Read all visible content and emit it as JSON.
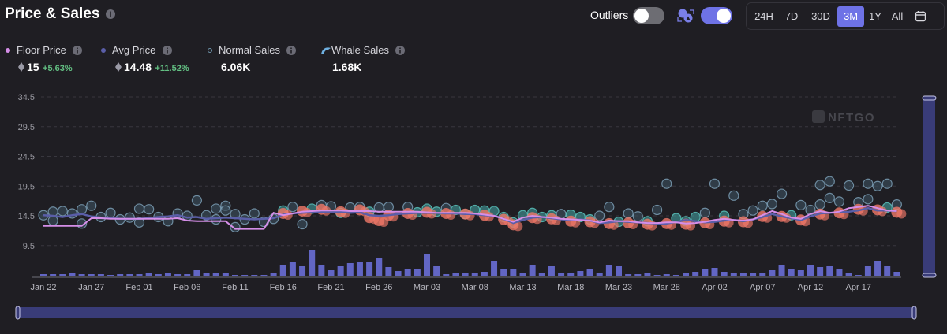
{
  "header": {
    "title": "Price & Sales"
  },
  "controls": {
    "outliers_label": "Outliers",
    "outliers_on": false,
    "whale_toggle_on": true,
    "ranges": [
      "24H",
      "7D",
      "30D",
      "3M",
      "1Y",
      "All"
    ],
    "active_range": "3M",
    "accent": "#6e72e6"
  },
  "legend": {
    "floor": {
      "label": "Floor Price",
      "value": "15",
      "change": "+5.63%",
      "color": "#d58ee8"
    },
    "avg": {
      "label": "Avg Price",
      "value": "14.48",
      "change": "+11.52%",
      "color": "#5a5ea8"
    },
    "normal": {
      "label": "Normal Sales",
      "value": "6.06K",
      "color": "#6f95ab"
    },
    "whale": {
      "label": "Whale Sales",
      "value": "1.68K",
      "color": "#f07868"
    }
  },
  "watermark": "NFTGO",
  "chart_data": {
    "type": "line+scatter+bar",
    "y_ticks": [
      "34.5",
      "29.5",
      "24.5",
      "19.5",
      "14.5",
      "9.5"
    ],
    "ylim": [
      4.5,
      34.5
    ],
    "x_ticks": [
      "Jan 22",
      "Jan 27",
      "Feb 01",
      "Feb 06",
      "Feb 11",
      "Feb 16",
      "Feb 21",
      "Feb 26",
      "Mar 03",
      "Mar 08",
      "Mar 13",
      "Mar 18",
      "Mar 23",
      "Mar 28",
      "Apr 02",
      "Apr 07",
      "Apr 12",
      "Apr 17"
    ],
    "x_range": [
      "Jan 22",
      "Apr 21"
    ],
    "grid": true,
    "floor_price": [
      12.8,
      12.8,
      12.8,
      12.8,
      12.8,
      14.1,
      14.1,
      14.0,
      14.0,
      14.0,
      14.0,
      14.0,
      14.0,
      14.0,
      14.1,
      13.7,
      13.6,
      13.6,
      13.6,
      13.6,
      12.3,
      12.3,
      12.3,
      12.3,
      15.0,
      14.6,
      14.9,
      15.2,
      15.3,
      15.4,
      15.4,
      15.4,
      15.3,
      15.3,
      15.3,
      15.2,
      15.2,
      15.2,
      15.2,
      15.2,
      15.1,
      15.0,
      15.0,
      15.0,
      15.0,
      14.9,
      14.7,
      14.5,
      14.0,
      13.5,
      14.2,
      14.5,
      14.3,
      14.2,
      14.0,
      13.9,
      13.8,
      13.7,
      13.4,
      13.7,
      13.6,
      13.6,
      13.4,
      13.3,
      13.3,
      13.4,
      13.4,
      13.2,
      13.3,
      13.5,
      13.8,
      14.0,
      13.8,
      13.7,
      13.9,
      14.6,
      15.3,
      14.8,
      14.2,
      14.0,
      14.8,
      15.3,
      15.0,
      15.2,
      15.8,
      16.0,
      16.2,
      15.8,
      15.4,
      15.3
    ],
    "avg_price": [
      14.6,
      14.5,
      14.3,
      14.6,
      14.8,
      14.4,
      14.2,
      14.1,
      14.0,
      14.0,
      14.0,
      14.1,
      14.3,
      14.4,
      14.6,
      14.2,
      14.3,
      14.0,
      14.1,
      14.2,
      14.1,
      14.0,
      13.9,
      14.0,
      14.1,
      14.7,
      14.9,
      15.0,
      15.1,
      15.2,
      15.1,
      15.2,
      15.0,
      15.1,
      14.6,
      14.5,
      14.6,
      14.8,
      14.9,
      15.0,
      15.0,
      15.0,
      14.9,
      14.9,
      14.8,
      14.8,
      14.6,
      14.5,
      14.0,
      13.3,
      13.8,
      14.2,
      14.3,
      14.1,
      13.9,
      13.8,
      13.9,
      13.7,
      13.3,
      13.4,
      13.6,
      13.5,
      13.4,
      13.3,
      13.2,
      13.2,
      13.5,
      13.8,
      13.6,
      13.4,
      13.5,
      13.7,
      13.8,
      13.6,
      13.9,
      14.3,
      14.8,
      14.4,
      14.1,
      13.8,
      14.4,
      14.9,
      15.0,
      15.1,
      15.2,
      15.4,
      15.8,
      15.4,
      15.4,
      15.3
    ],
    "normal_sales": [
      [
        "Jan 22",
        14.6
      ],
      [
        "Jan 23",
        15.2
      ],
      [
        "Jan 23",
        13.7
      ],
      [
        "Jan 24",
        15.3
      ],
      [
        "Jan 25",
        14.9
      ],
      [
        "Jan 26",
        15.6
      ],
      [
        "Jan 26",
        13.2
      ],
      [
        "Jan 27",
        16.2
      ],
      [
        "Jan 28",
        14.3
      ],
      [
        "Jan 29",
        15.0
      ],
      [
        "Jan 30",
        13.9
      ],
      [
        "Jan 31",
        14.2
      ],
      [
        "Feb 01",
        15.7
      ],
      [
        "Feb 01",
        13.4
      ],
      [
        "Feb 02",
        15.6
      ],
      [
        "Feb 03",
        14.3
      ],
      [
        "Feb 04",
        13.6
      ],
      [
        "Feb 05",
        14.9
      ],
      [
        "Feb 06",
        14.5
      ],
      [
        "Feb 07",
        17.1
      ],
      [
        "Feb 08",
        14.6
      ],
      [
        "Feb 09",
        15.7
      ],
      [
        "Feb 09",
        13.9
      ],
      [
        "Feb 10",
        16.2
      ],
      [
        "Feb 10",
        15.4
      ],
      [
        "Feb 11",
        12.6
      ],
      [
        "Feb 11",
        14.8
      ],
      [
        "Feb 12",
        13.9
      ],
      [
        "Feb 13",
        14.9
      ],
      [
        "Feb 14",
        13.5
      ],
      [
        "Feb 15",
        14.0
      ],
      [
        "Feb 16",
        15.4
      ],
      [
        "Feb 17",
        16.0
      ],
      [
        "Feb 18",
        13.1
      ],
      [
        "Feb 19",
        15.7
      ],
      [
        "Feb 20",
        16.3
      ],
      [
        "Feb 21",
        16.1
      ],
      [
        "Feb 22",
        15.0
      ],
      [
        "Feb 23",
        15.9
      ],
      [
        "Feb 24",
        16.0
      ],
      [
        "Feb 25",
        15.2
      ],
      [
        "Feb 26",
        15.9
      ],
      [
        "Feb 27",
        16.0
      ],
      [
        "Mar 01",
        16.0
      ],
      [
        "Mar 02",
        15.1
      ],
      [
        "Mar 03",
        15.7
      ],
      [
        "Mar 04",
        15.2
      ],
      [
        "Mar 05",
        15.8
      ],
      [
        "Mar 06",
        15.5
      ],
      [
        "Mar 07",
        14.8
      ],
      [
        "Mar 08",
        15.5
      ],
      [
        "Mar 09",
        15.4
      ],
      [
        "Mar 10",
        15.3
      ],
      [
        "Mar 11",
        14.3
      ],
      [
        "Mar 12",
        13.4
      ],
      [
        "Mar 13",
        14.6
      ],
      [
        "Mar 14",
        15.0
      ],
      [
        "Mar 15",
        14.3
      ],
      [
        "Mar 16",
        14.6
      ],
      [
        "Mar 17",
        14.8
      ],
      [
        "Mar 18",
        14.7
      ],
      [
        "Mar 19",
        14.3
      ],
      [
        "Mar 20",
        13.9
      ],
      [
        "Mar 21",
        14.5
      ],
      [
        "Mar 22",
        16.0
      ],
      [
        "Mar 23",
        13.5
      ],
      [
        "Mar 24",
        14.9
      ],
      [
        "Mar 25",
        14.4
      ],
      [
        "Mar 26",
        13.6
      ],
      [
        "Mar 27",
        15.5
      ],
      [
        "Mar 28",
        19.9
      ],
      [
        "Mar 29",
        14.1
      ],
      [
        "Mar 30",
        13.6
      ],
      [
        "Mar 31",
        14.3
      ],
      [
        "Apr 01",
        15.0
      ],
      [
        "Apr 02",
        19.9
      ],
      [
        "Apr 03",
        14.5
      ],
      [
        "Apr 04",
        17.9
      ],
      [
        "Apr 05",
        14.8
      ],
      [
        "Apr 06",
        15.4
      ],
      [
        "Apr 07",
        16.2
      ],
      [
        "Apr 08",
        16.5
      ],
      [
        "Apr 09",
        18.2
      ],
      [
        "Apr 10",
        14.6
      ],
      [
        "Apr 11",
        16.3
      ],
      [
        "Apr 12",
        15.5
      ],
      [
        "Apr 13",
        16.4
      ],
      [
        "Apr 13",
        19.7
      ],
      [
        "Apr 14",
        17.5
      ],
      [
        "Apr 14",
        20.3
      ],
      [
        "Apr 15",
        16.9
      ],
      [
        "Apr 16",
        19.6
      ],
      [
        "Apr 17",
        16.8
      ],
      [
        "Apr 18",
        17.3
      ],
      [
        "Apr 18",
        19.9
      ],
      [
        "Apr 19",
        19.5
      ],
      [
        "Apr 20",
        19.9
      ],
      [
        "Apr 20",
        15.9
      ],
      [
        "Apr 21",
        16.4
      ]
    ],
    "whale_sales": [
      [
        "Feb 16",
        14.9
      ],
      [
        "Feb 18",
        15.3
      ],
      [
        "Feb 20",
        15.6
      ],
      [
        "Feb 22",
        15.2
      ],
      [
        "Feb 24",
        15.5
      ],
      [
        "Feb 25",
        14.2
      ],
      [
        "Feb 26",
        13.7
      ],
      [
        "Feb 27",
        14.6
      ],
      [
        "Mar 01",
        14.9
      ],
      [
        "Mar 03",
        15.1
      ],
      [
        "Mar 05",
        14.9
      ],
      [
        "Mar 07",
        14.8
      ],
      [
        "Mar 09",
        14.6
      ],
      [
        "Mar 11",
        13.9
      ],
      [
        "Mar 12",
        13.0
      ],
      [
        "Mar 14",
        14.2
      ],
      [
        "Mar 16",
        14.0
      ],
      [
        "Mar 18",
        13.6
      ],
      [
        "Mar 20",
        13.5
      ],
      [
        "Mar 22",
        13.2
      ],
      [
        "Mar 24",
        13.3
      ],
      [
        "Mar 26",
        13.1
      ],
      [
        "Mar 28",
        13.2
      ],
      [
        "Mar 30",
        13.1
      ],
      [
        "Apr 01",
        13.3
      ],
      [
        "Apr 03",
        13.6
      ],
      [
        "Apr 05",
        13.5
      ],
      [
        "Apr 07",
        14.4
      ],
      [
        "Apr 09",
        14.4
      ],
      [
        "Apr 11",
        13.8
      ],
      [
        "Apr 13",
        14.8
      ],
      [
        "Apr 15",
        15.0
      ],
      [
        "Apr 17",
        15.6
      ],
      [
        "Apr 19",
        15.5
      ],
      [
        "Apr 21",
        15.1
      ]
    ],
    "daily_sales_volume": [
      30,
      30,
      30,
      40,
      30,
      30,
      30,
      20,
      30,
      30,
      30,
      40,
      30,
      50,
      30,
      30,
      80,
      50,
      50,
      50,
      20,
      20,
      20,
      20,
      50,
      140,
      180,
      130,
      340,
      140,
      80,
      130,
      170,
      190,
      180,
      230,
      120,
      70,
      90,
      100,
      280,
      130,
      30,
      50,
      40,
      40,
      60,
      200,
      100,
      90,
      40,
      140,
      50,
      130,
      40,
      50,
      70,
      100,
      50,
      140,
      130,
      30,
      30,
      40,
      20,
      30,
      20,
      40,
      60,
      100,
      110,
      60,
      40,
      40,
      50,
      50,
      80,
      140,
      100,
      80,
      150,
      120,
      130,
      100,
      50,
      20,
      130,
      200,
      130,
      60
    ],
    "bar_color": "#6266c4"
  }
}
